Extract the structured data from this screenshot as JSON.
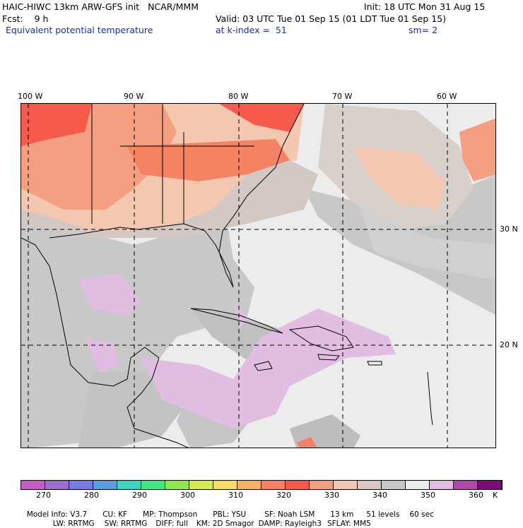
{
  "header": {
    "model_title": "HAIC-HIWC 13km ARW-GFS init   NCAR/MMM",
    "init_time": "Init: 18 UTC Mon 31 Aug 15",
    "fcst": "Fcst:    9 h",
    "valid_time": "Valid: 03 UTC Tue 01 Sep 15 (01 LDT Tue 01 Sep 15)",
    "field_name": "Equivalent potential temperature",
    "level": "at k-index =  51",
    "smoothing": "sm= 2"
  },
  "map": {
    "longitude_labels": [
      "100 W",
      "90 W",
      "80 W",
      "70 W",
      "60 W"
    ],
    "latitude_labels": [
      "30 N",
      "20 N"
    ]
  },
  "colorbar": {
    "colors": [
      "#c45ec4",
      "#9a6fd0",
      "#7a7ae6",
      "#5a9ee0",
      "#3ad4c0",
      "#3ee882",
      "#8ee84a",
      "#d6ea4a",
      "#f8da66",
      "#f8b062",
      "#f58262",
      "#f55a4a",
      "#f59f82",
      "#f4c8b0",
      "#d8c8c0",
      "#c8c8c8",
      "#ececec",
      "#e2bde2",
      "#b04aa8",
      "#7a0a7a"
    ],
    "tick_labels": [
      "270",
      "280",
      "290",
      "300",
      "310",
      "320",
      "330",
      "340",
      "350",
      "360"
    ],
    "unit": "K"
  },
  "footer": {
    "line1": [
      "Model Info: V3.7",
      "CU: KF",
      "MP: Thompson",
      "PBL: YSU",
      "SF: Noah LSM",
      "13 km",
      "51 levels",
      "60 sec"
    ],
    "line2": [
      "LW: RRTMG",
      "SW: RRTMG",
      "DIFF: full",
      "KM: 2D Smagor",
      "DAMP: Rayleigh3",
      "SFLAY: MM5"
    ]
  }
}
